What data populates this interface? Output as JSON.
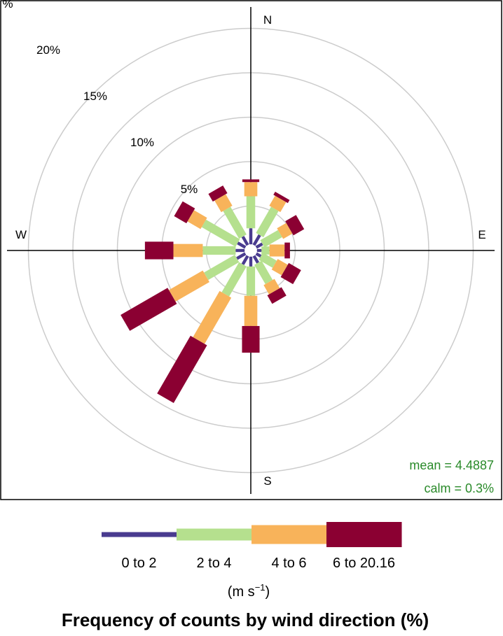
{
  "chart_data": {
    "type": "windrose",
    "title": "Frequency of counts by wind direction (%)",
    "directions": [
      0,
      30,
      60,
      90,
      120,
      150,
      180,
      210,
      240,
      270,
      300,
      330
    ],
    "compass": [
      "N",
      "E",
      "S",
      "W"
    ],
    "radial_tick_labels": [
      "5%",
      "10%",
      "15%",
      "20%",
      "%"
    ],
    "radial_ticks": [
      5,
      10,
      15,
      20,
      25
    ],
    "radial_max": 25,
    "calm_radius_pct": 0.7,
    "series": [
      {
        "name": "0 to 2",
        "color": "#493b8f",
        "values": [
          1.8,
          1.3,
          0.8,
          0.5,
          0.6,
          0.9,
          1.1,
          1.1,
          1.1,
          1.0,
          1.0,
          1.1
        ]
      },
      {
        "name": "2 to 4",
        "color": "#b5e08e",
        "values": [
          3.6,
          3.4,
          2.3,
          0.9,
          1.8,
          2.5,
          3.3,
          3.9,
          4.0,
          3.7,
          4.4,
          3.6
        ]
      },
      {
        "name": "4 to 6",
        "color": "#f8b35a",
        "values": [
          1.6,
          1.3,
          1.2,
          1.7,
          1.3,
          1.2,
          3.4,
          6.0,
          4.4,
          3.3,
          1.7,
          1.5
        ]
      },
      {
        "name": "6 to 20.16",
        "color": "#8b0032",
        "values": [
          0.3,
          0.4,
          1.4,
          0.6,
          1.6,
          1.1,
          3.0,
          7.5,
          6.1,
          3.2,
          1.6,
          1.0
        ]
      }
    ],
    "legend_units": "(m s",
    "legend_units_exp": "−1",
    "legend_units_end": ")",
    "stats": {
      "mean": "mean = 4.4887",
      "calm": "calm = 0.3%"
    },
    "colors": {
      "grid": "#cccccc",
      "axis": "#000000",
      "stats": "#2a8a2a"
    }
  }
}
